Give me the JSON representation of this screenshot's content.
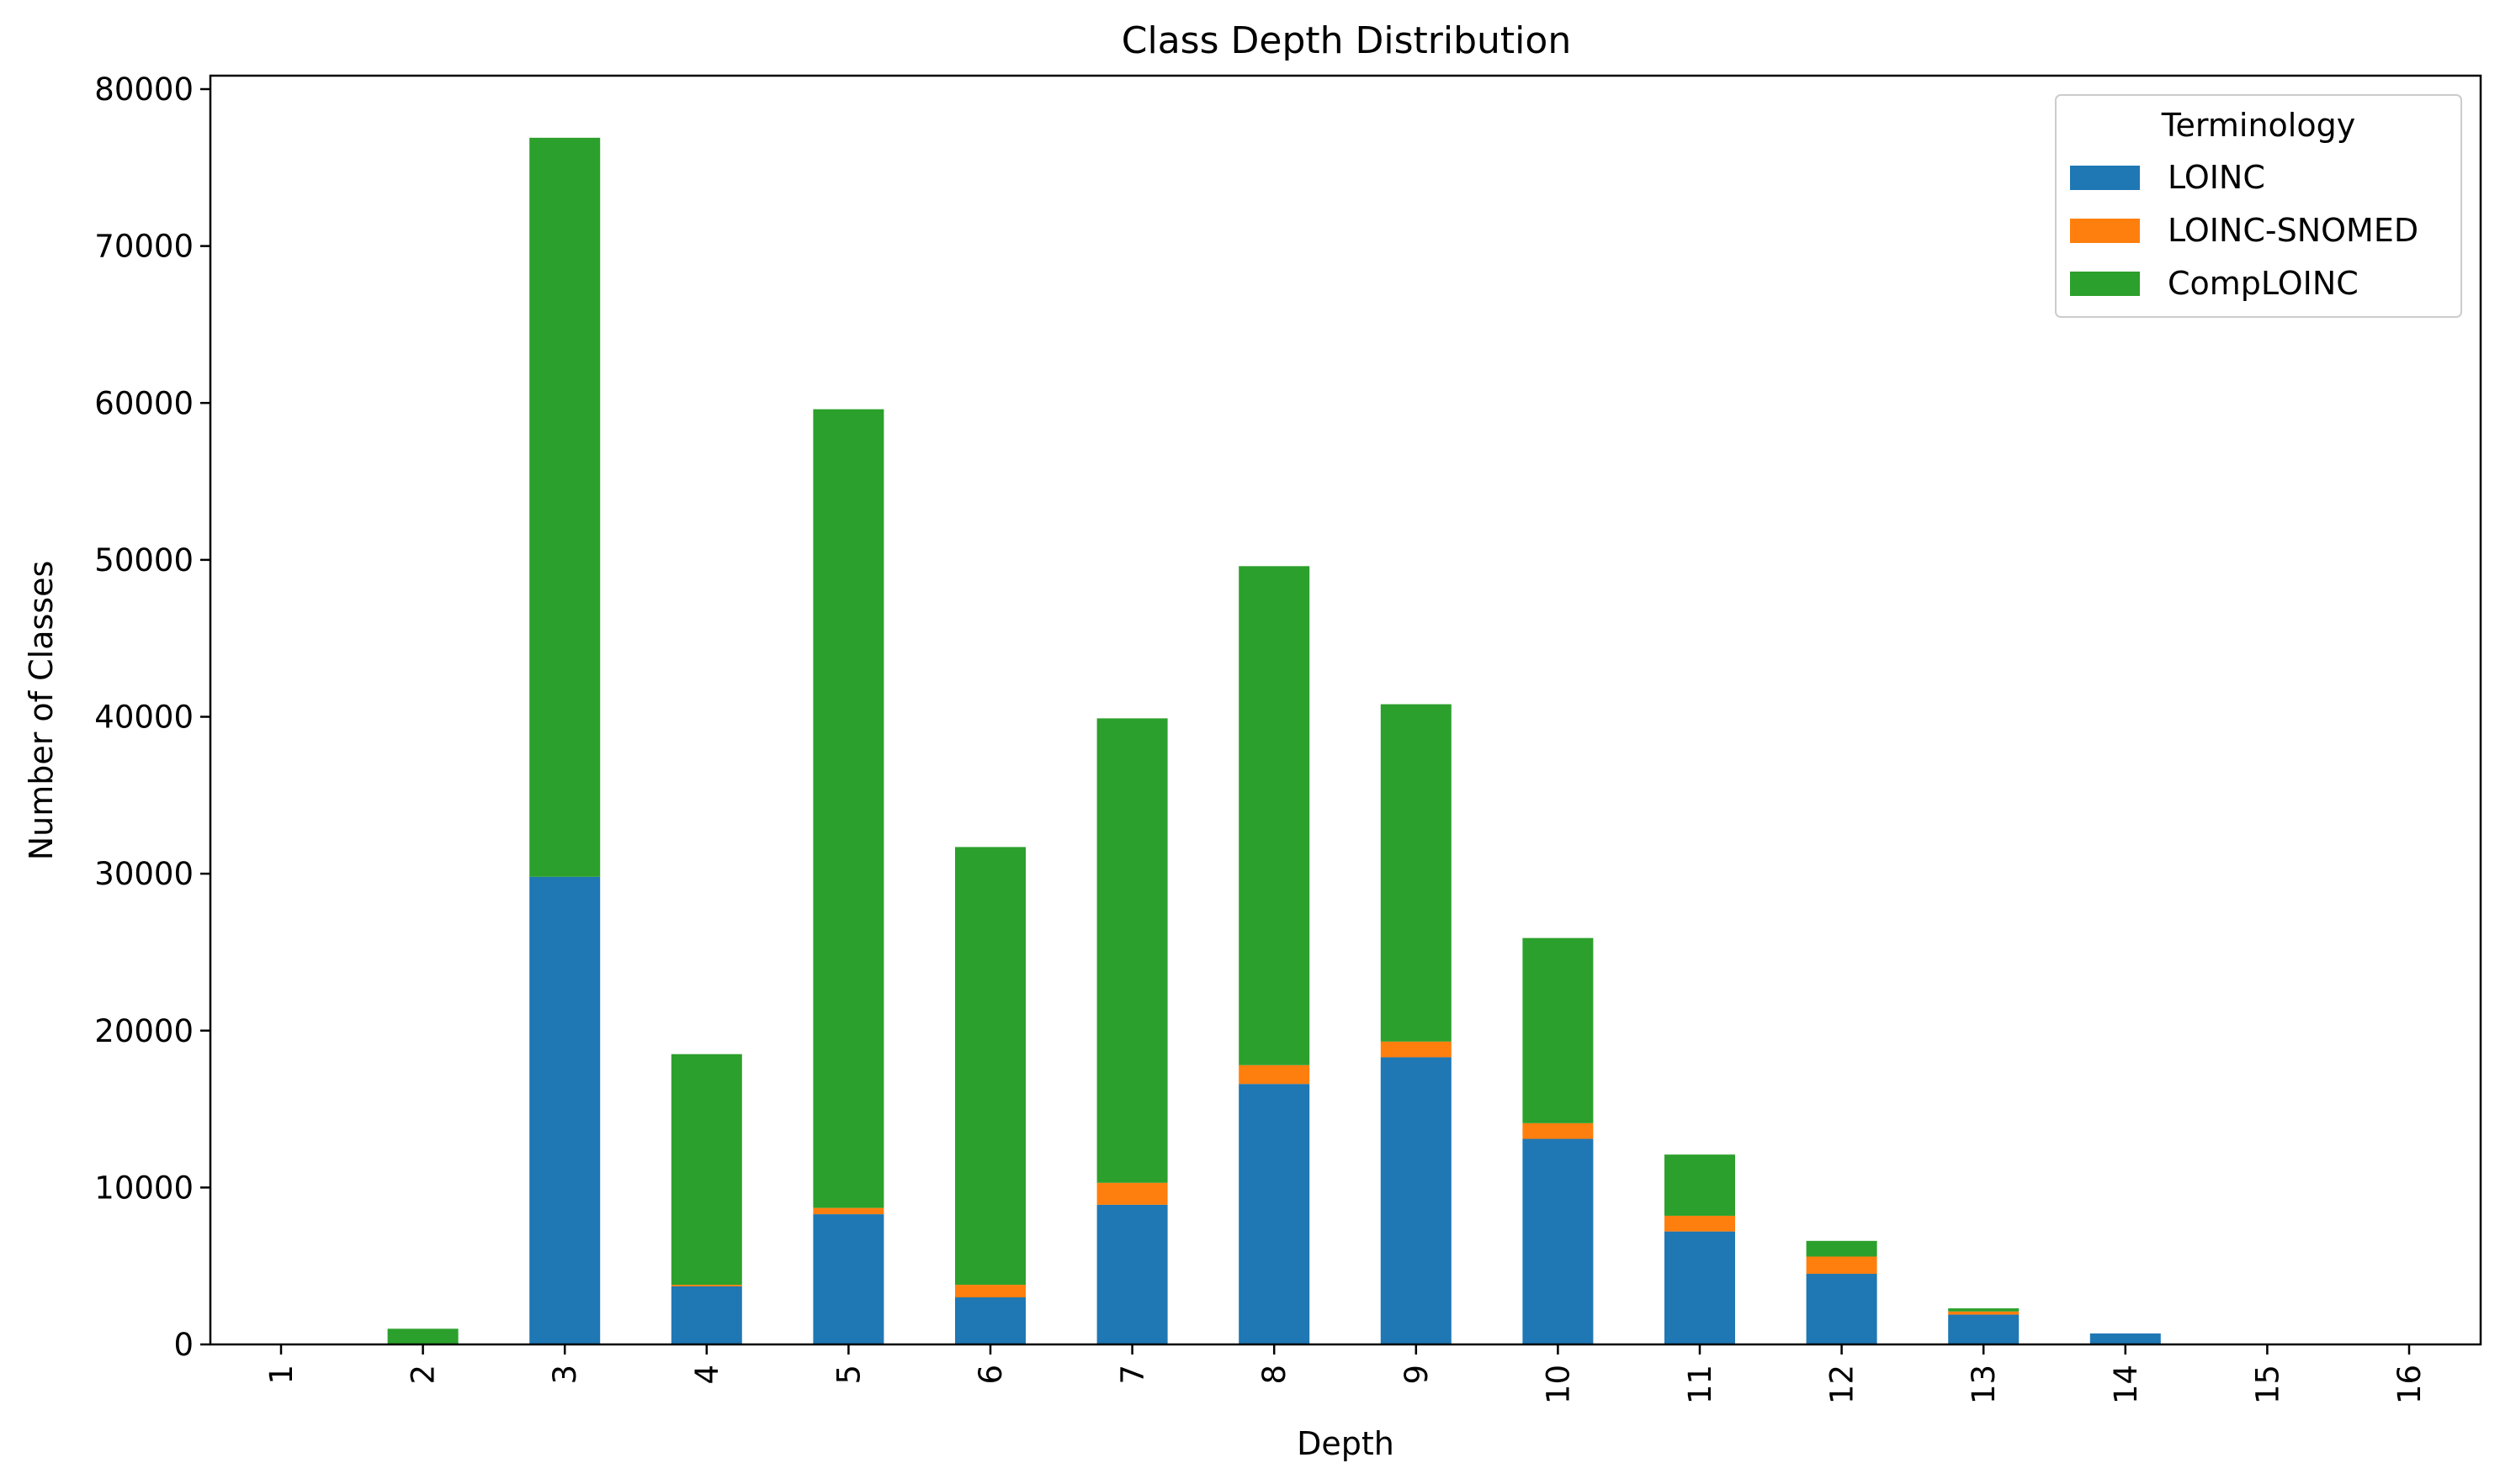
{
  "chart_data": {
    "type": "bar",
    "stacked": true,
    "title": "Class Depth Distribution",
    "xlabel": "Depth",
    "ylabel": "Number of Classes",
    "categories": [
      "1",
      "2",
      "3",
      "4",
      "5",
      "6",
      "7",
      "8",
      "9",
      "10",
      "11",
      "12",
      "13",
      "14",
      "15",
      "16"
    ],
    "ylim": [
      0,
      81000
    ],
    "yticks": [
      "0",
      "10000",
      "20000",
      "30000",
      "40000",
      "50000",
      "60000",
      "70000",
      "80000"
    ],
    "grid": false,
    "legend": {
      "title": "Terminology",
      "position": "top-right"
    },
    "series": [
      {
        "name": "LOINC",
        "color": "#1f77b4",
        "values": [
          0,
          0,
          29800,
          3700,
          8300,
          3000,
          8900,
          16600,
          18300,
          13100,
          7200,
          4500,
          1900,
          700,
          0,
          0
        ]
      },
      {
        "name": "LOINC-SNOMED",
        "color": "#ff7f0e",
        "values": [
          0,
          0,
          0,
          100,
          400,
          800,
          1400,
          1200,
          1000,
          1000,
          1000,
          1100,
          200,
          0,
          0,
          0
        ]
      },
      {
        "name": "CompLOINC",
        "color": "#2ca02c",
        "values": [
          0,
          1000,
          47100,
          14700,
          50900,
          27900,
          29600,
          31800,
          21500,
          11800,
          3900,
          1000,
          200,
          0,
          0,
          0
        ]
      }
    ]
  }
}
